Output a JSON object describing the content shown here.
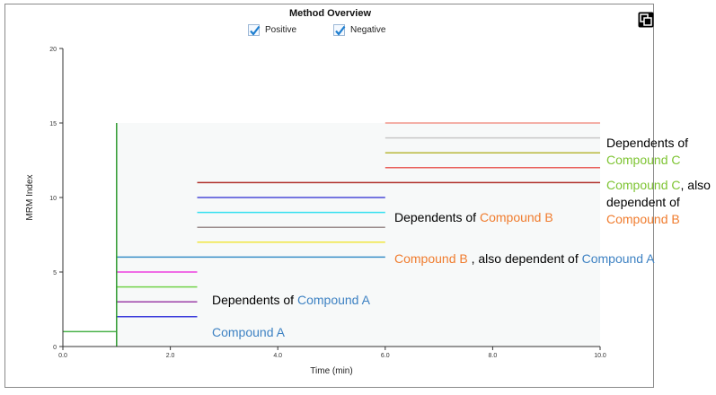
{
  "title": "Method Overview",
  "legend": [
    {
      "label": "Positive",
      "checked": true
    },
    {
      "label": "Negative",
      "checked": true
    }
  ],
  "chart_data": {
    "type": "line",
    "xlabel": "Time (min)",
    "ylabel": "MRM Index",
    "xlim": [
      0,
      10
    ],
    "ylim": [
      0,
      20
    ],
    "xticks": [
      "0.0",
      "2.0",
      "4.0",
      "6.0",
      "8.0",
      "10.0"
    ],
    "yticks": [
      "0",
      "5",
      "10",
      "15",
      "20"
    ],
    "grid": false,
    "segments": [
      {
        "y": 1,
        "x0": 0.0,
        "x1": 1.0,
        "color": "#4cb34c"
      },
      {
        "y": 2,
        "x0": 1.0,
        "x1": 2.5,
        "color": "#3b3bdb"
      },
      {
        "y": 3,
        "x0": 1.0,
        "x1": 2.5,
        "color": "#9b3fa8"
      },
      {
        "y": 4,
        "x0": 1.0,
        "x1": 2.5,
        "color": "#73d34a"
      },
      {
        "y": 5,
        "x0": 1.0,
        "x1": 2.5,
        "color": "#ee3fe0"
      },
      {
        "y": 6,
        "x0": 1.0,
        "x1": 6.0,
        "color": "#3a8fc8"
      },
      {
        "y": 7,
        "x0": 2.5,
        "x1": 6.0,
        "color": "#f0e640"
      },
      {
        "y": 8,
        "x0": 2.5,
        "x1": 6.0,
        "color": "#9a8b8b"
      },
      {
        "y": 9,
        "x0": 2.5,
        "x1": 6.0,
        "color": "#33e0f0"
      },
      {
        "y": 10,
        "x0": 2.5,
        "x1": 6.0,
        "color": "#4a4ad8"
      },
      {
        "y": 11,
        "x0": 2.5,
        "x1": 10.0,
        "color": "#b0302a"
      },
      {
        "y": 12,
        "x0": 6.0,
        "x1": 10.0,
        "color": "#e9605a"
      },
      {
        "y": 13,
        "x0": 6.0,
        "x1": 10.0,
        "color": "#b8b83a"
      },
      {
        "y": 14,
        "x0": 6.0,
        "x1": 10.0,
        "color": "#c8c8c8"
      },
      {
        "y": 15,
        "x0": 6.0,
        "x1": 10.0,
        "color": "#f2968a"
      }
    ],
    "vertical_marker": {
      "x": 1.0,
      "y0": 0,
      "y1": 15,
      "color": "#2f9a2f"
    }
  },
  "annotations": {
    "compound_a": {
      "name": "Compound A"
    },
    "deps_a": {
      "prefix": "Dependents of ",
      "name": "Compound A"
    },
    "compound_b": {
      "name": "Compound B",
      "mid": " , also dependent of ",
      "parent": "Compound A"
    },
    "deps_b": {
      "prefix": "Dependents of ",
      "name": "Compound B"
    },
    "compound_c": {
      "name": "Compound C",
      "l1_suffix": ", also",
      "l2": "dependent of",
      "parent": "Compound B"
    },
    "deps_c": {
      "prefix": "Dependents of",
      "name": "Compound C"
    }
  }
}
